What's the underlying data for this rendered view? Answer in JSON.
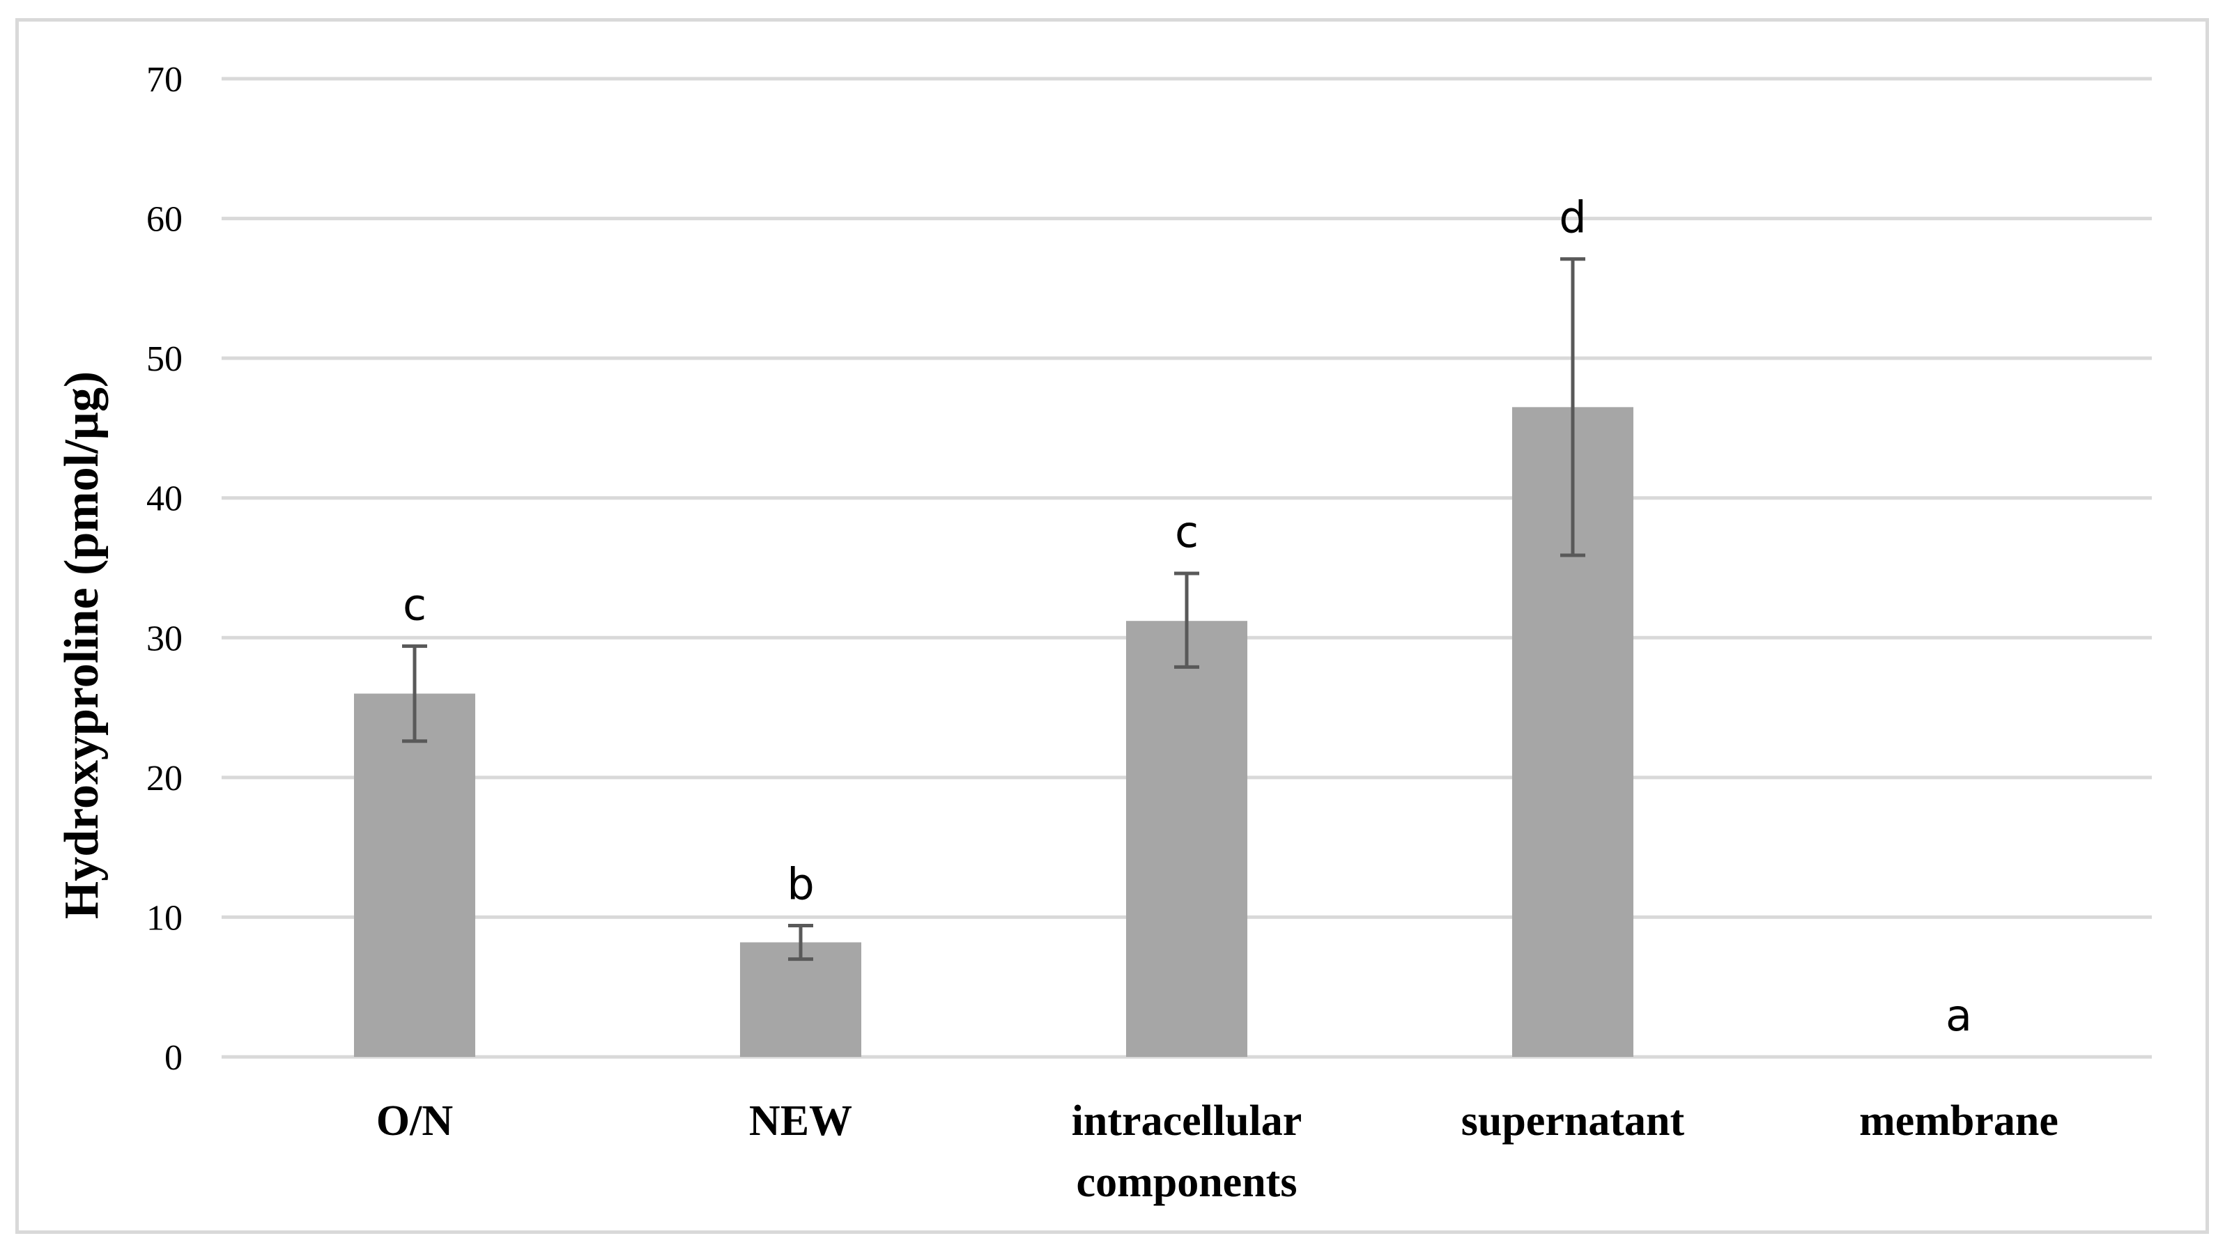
{
  "chart_data": {
    "type": "bar",
    "title": "",
    "xlabel": "",
    "ylabel": "Hydroxyproline  (pmol/µg)",
    "ylim": [
      0,
      70
    ],
    "yticks": [
      0,
      10,
      20,
      30,
      40,
      50,
      60,
      70
    ],
    "grid": true,
    "legend": "none",
    "categories": [
      [
        "O/N"
      ],
      [
        "NEW"
      ],
      [
        "intracellular",
        "components"
      ],
      [
        "supernatant"
      ],
      [
        "membrane"
      ]
    ],
    "values": [
      26,
      8.2,
      31.2,
      46.5,
      0
    ],
    "error_low": [
      22.6,
      7.0,
      27.9,
      35.9,
      0
    ],
    "error_high": [
      29.4,
      9.4,
      34.6,
      57.1,
      0
    ],
    "significance_letters": [
      "c",
      "b",
      "c",
      "d",
      "a"
    ],
    "colors": {
      "bar": "#a6a6a6",
      "error_bar": "#595959",
      "grid": "#d9d9d9",
      "frame": "#d9d9d9"
    }
  }
}
